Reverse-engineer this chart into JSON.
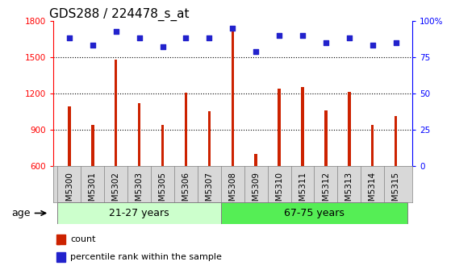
{
  "title": "GDS288 / 224478_s_at",
  "categories": [
    "GSM5300",
    "GSM5301",
    "GSM5302",
    "GSM5303",
    "GSM5305",
    "GSM5306",
    "GSM5307",
    "GSM5308",
    "GSM5309",
    "GSM5310",
    "GSM5311",
    "GSM5312",
    "GSM5313",
    "GSM5314",
    "GSM5315"
  ],
  "counts": [
    1090,
    940,
    1480,
    1120,
    940,
    1205,
    1050,
    1720,
    700,
    1240,
    1250,
    1060,
    1215,
    940,
    1010
  ],
  "percentiles": [
    88,
    83,
    93,
    88,
    82,
    88,
    88,
    95,
    79,
    90,
    90,
    85,
    88,
    83,
    85
  ],
  "bar_color": "#cc2200",
  "dot_color": "#2222cc",
  "group1_label": "21-27 years",
  "group2_label": "67-75 years",
  "group1_count": 7,
  "group2_count": 8,
  "ylim_left": [
    600,
    1800
  ],
  "ylim_right": [
    0,
    100
  ],
  "yticks_left": [
    600,
    900,
    1200,
    1500,
    1800
  ],
  "yticks_right": [
    0,
    25,
    50,
    75,
    100
  ],
  "right_tick_labels": [
    "0",
    "25",
    "50",
    "75",
    "100%"
  ],
  "age_label": "age",
  "legend_count": "count",
  "legend_percentile": "percentile rank within the sample",
  "plot_bg": "#ffffff",
  "xtick_bg": "#d8d8d8",
  "group1_bg": "#ccffcc",
  "group2_bg": "#55ee55",
  "title_fontsize": 11,
  "tick_fontsize": 7.5,
  "bar_width": 0.12
}
